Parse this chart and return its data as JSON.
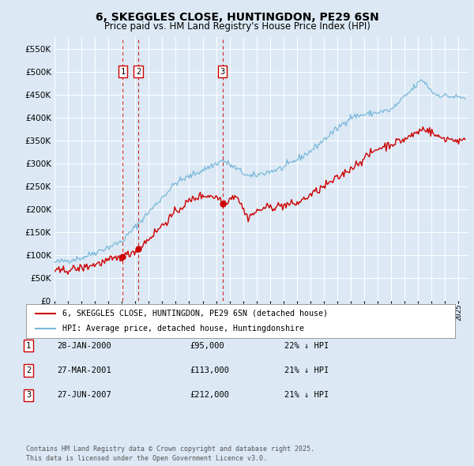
{
  "title": "6, SKEGGLES CLOSE, HUNTINGDON, PE29 6SN",
  "subtitle": "Price paid vs. HM Land Registry's House Price Index (HPI)",
  "ytick_values": [
    0,
    50000,
    100000,
    150000,
    200000,
    250000,
    300000,
    350000,
    400000,
    450000,
    500000,
    550000
  ],
  "ylim": [
    0,
    575000
  ],
  "hpi_color": "#7ab8d9",
  "price_color": "#cc0000",
  "background_color": "#dce9f5",
  "plot_bg_color": "#dce9f5",
  "grid_color": "#ffffff",
  "sale_points": [
    {
      "date_num": 2000.07,
      "price": 95000,
      "label": "1"
    },
    {
      "date_num": 2001.23,
      "price": 113000,
      "label": "2"
    },
    {
      "date_num": 2007.48,
      "price": 212000,
      "label": "3"
    }
  ],
  "legend_line1": "6, SKEGGLES CLOSE, HUNTINGDON, PE29 6SN (detached house)",
  "legend_line2": "HPI: Average price, detached house, Huntingdonshire",
  "table_rows": [
    {
      "num": "1",
      "date": "28-JAN-2000",
      "price": "£95,000",
      "pct": "22% ↓ HPI"
    },
    {
      "num": "2",
      "date": "27-MAR-2001",
      "price": "£113,000",
      "pct": "21% ↓ HPI"
    },
    {
      "num": "3",
      "date": "27-JUN-2007",
      "price": "£212,000",
      "pct": "21% ↓ HPI"
    }
  ],
  "footer": "Contains HM Land Registry data © Crown copyright and database right 2025.\nThis data is licensed under the Open Government Licence v3.0.",
  "xmin": 1995.0,
  "xmax": 2025.8
}
